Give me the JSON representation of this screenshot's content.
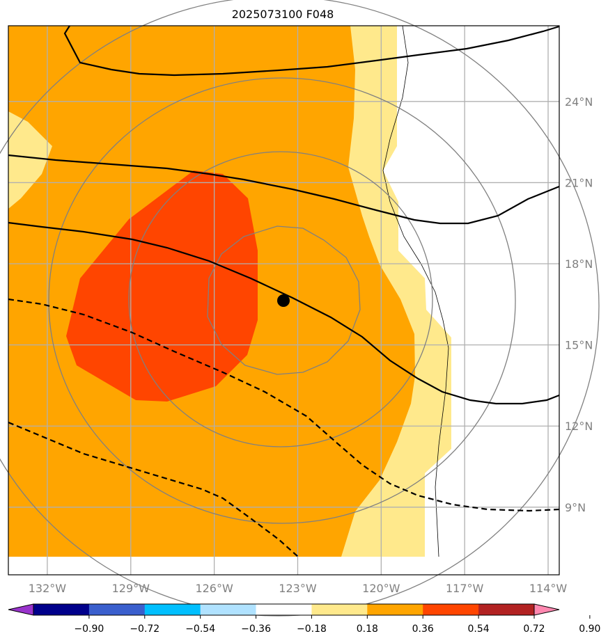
{
  "title": "2025073100 F048",
  "map": {
    "lon_range": [
      -133.4,
      -113.6
    ],
    "lat_range": [
      6.5,
      26.8
    ],
    "grid": true,
    "projection": "lat-lon",
    "storm_center": {
      "lon": -123.6,
      "lat": 16.3
    }
  },
  "lon_labels": [
    {
      "lon": -132,
      "text": "132°W"
    },
    {
      "lon": -129,
      "text": "129°W"
    },
    {
      "lon": -126,
      "text": "126°W"
    },
    {
      "lon": -123,
      "text": "123°W"
    },
    {
      "lon": -120,
      "text": "120°W"
    },
    {
      "lon": -117,
      "text": "117°W"
    },
    {
      "lon": -114,
      "text": "114°W"
    }
  ],
  "lat_labels": [
    {
      "lat": 24,
      "text": "24°N"
    },
    {
      "lat": 21,
      "text": "21°N"
    },
    {
      "lat": 18,
      "text": "18°N"
    },
    {
      "lat": 15,
      "text": "15°N"
    },
    {
      "lat": 12,
      "text": "12°N"
    },
    {
      "lat": 9,
      "text": "9°N"
    }
  ],
  "colorbar": {
    "levels": [
      "-0.90",
      "-0.72",
      "-0.54",
      "-0.36",
      "-0.18",
      "0.18",
      "0.36",
      "0.54",
      "0.72",
      "0.90"
    ],
    "colors": [
      "#9933cc",
      "#00008b",
      "#3a5fcd",
      "#00bfff",
      "#b0e2ff",
      "#ffffff",
      "#ffe98c",
      "#ffa500",
      "#ff4500",
      "#b22222",
      "#ff88b0"
    ],
    "extend": "both"
  },
  "colors": {
    "light_yellow": "#ffe98c",
    "orange": "#ffa500",
    "red_orange": "#ff4500",
    "grid": "#b0b0b0",
    "ring": "#808080",
    "contour": "#000000"
  }
}
